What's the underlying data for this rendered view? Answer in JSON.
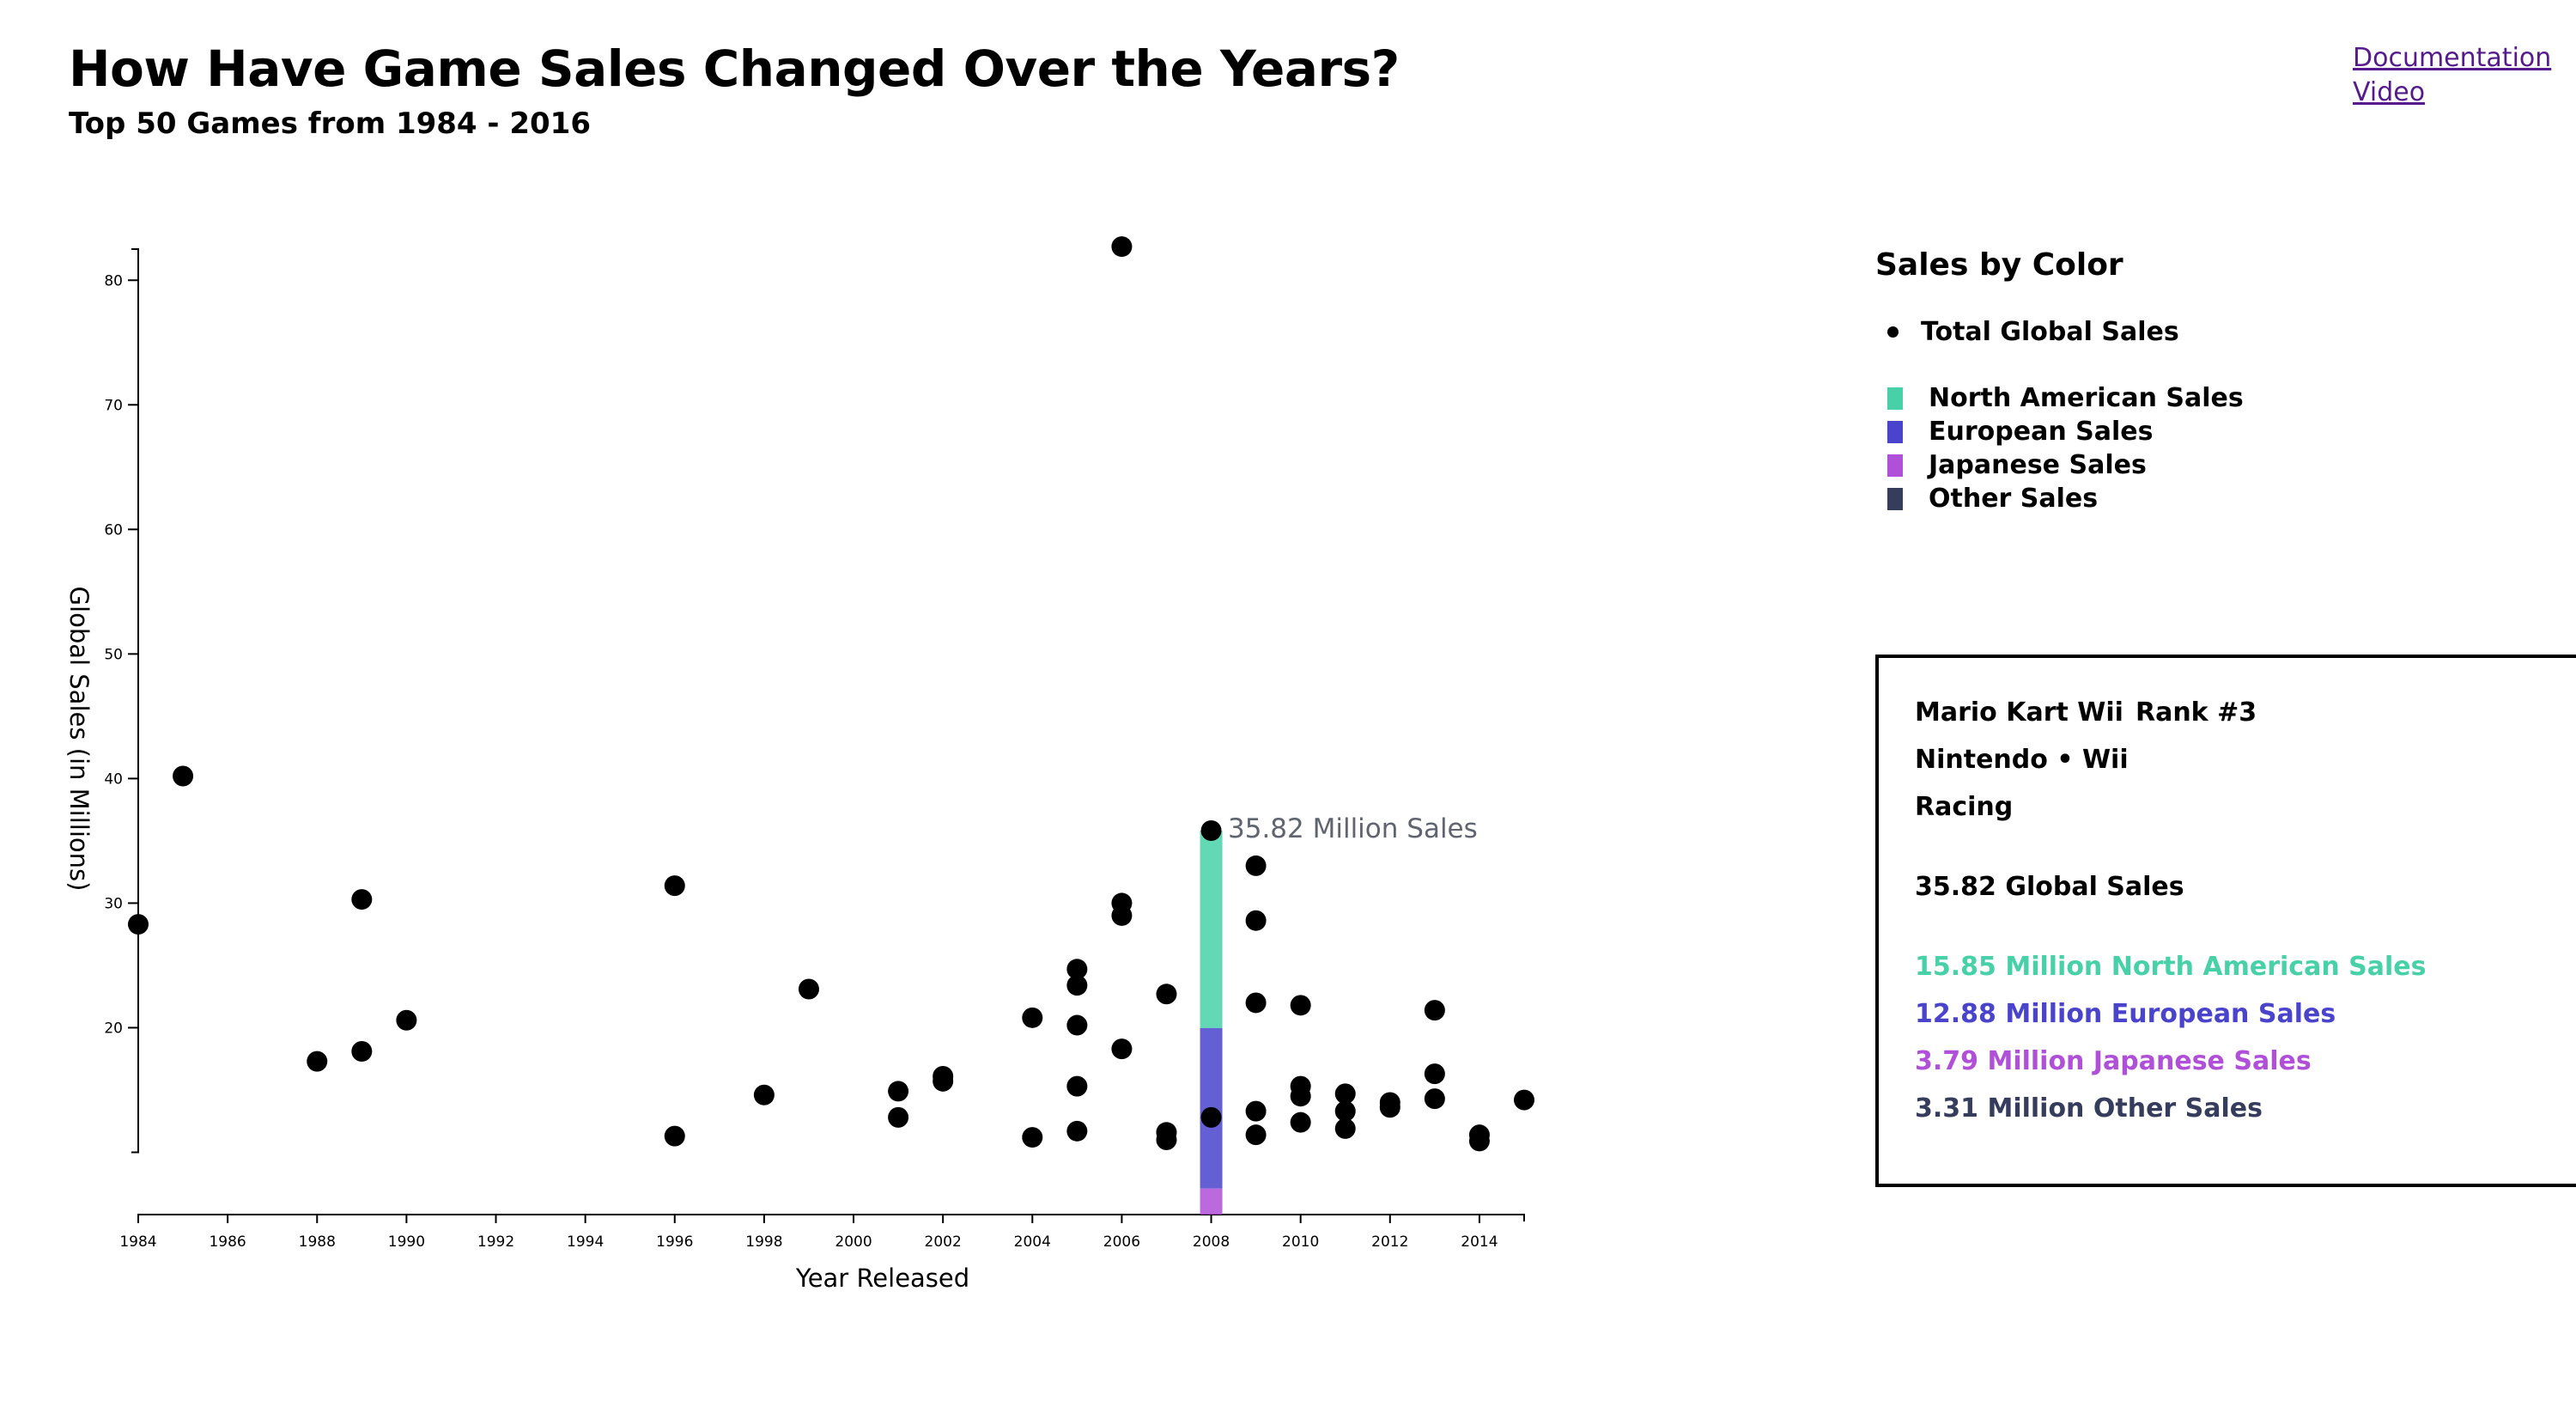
{
  "header": {
    "title": "How Have Game Sales Changed Over the Years?",
    "subtitle": "Top 50 Games from 1984 - 2016"
  },
  "links": {
    "documentation": "Documentation",
    "video": "Video"
  },
  "legend": {
    "title": "Sales by Color",
    "total_label": "Total Global Sales",
    "items": [
      {
        "label": "North American Sales",
        "color": "#48d1a8"
      },
      {
        "label": "European Sales",
        "color": "#4a43cc"
      },
      {
        "label": "Japanese Sales",
        "color": "#b04fd8"
      },
      {
        "label": "Other Sales",
        "color": "#363d5c"
      }
    ]
  },
  "tooltip": {
    "label": "35.82 Million Sales"
  },
  "info": {
    "name": "Mario Kart Wii",
    "rank": "Rank #3",
    "publisher_platform": "Nintendo • Wii",
    "genre": "Racing",
    "global": "35.82 Global Sales",
    "na": "15.85 Million North American Sales",
    "eu": "12.88 Million European Sales",
    "jp": "3.79 Million Japanese Sales",
    "other": "3.31 Million Other Sales"
  },
  "chart_data": {
    "type": "scatter",
    "xlabel": "Year Released",
    "ylabel": "Global Sales (in Millions)",
    "xlim": [
      1984,
      2015
    ],
    "ylim": [
      5,
      82.5
    ],
    "x_ticks": [
      1984,
      1986,
      1988,
      1990,
      1992,
      1994,
      1996,
      1998,
      2000,
      2002,
      2004,
      2006,
      2008,
      2010,
      2012,
      2014
    ],
    "y_ticks": [
      20,
      30,
      40,
      50,
      60,
      70,
      80
    ],
    "grid": false,
    "points": [
      {
        "x": 2006,
        "y": 82.7
      },
      {
        "x": 1985,
        "y": 40.2
      },
      {
        "x": 1984,
        "y": 28.3
      },
      {
        "x": 1989,
        "y": 30.3
      },
      {
        "x": 1996,
        "y": 31.4
      },
      {
        "x": 1990,
        "y": 20.6
      },
      {
        "x": 1989,
        "y": 18.1
      },
      {
        "x": 1988,
        "y": 17.3
      },
      {
        "x": 1996,
        "y": 11.3
      },
      {
        "x": 1998,
        "y": 14.6
      },
      {
        "x": 1999,
        "y": 23.1
      },
      {
        "x": 2001,
        "y": 14.9
      },
      {
        "x": 2001,
        "y": 12.8
      },
      {
        "x": 2002,
        "y": 16.1
      },
      {
        "x": 2002,
        "y": 15.7
      },
      {
        "x": 2004,
        "y": 20.8
      },
      {
        "x": 2004,
        "y": 11.2
      },
      {
        "x": 2005,
        "y": 24.7
      },
      {
        "x": 2005,
        "y": 23.4
      },
      {
        "x": 2005,
        "y": 20.2
      },
      {
        "x": 2005,
        "y": 15.3
      },
      {
        "x": 2005,
        "y": 11.7
      },
      {
        "x": 2006,
        "y": 30.0
      },
      {
        "x": 2006,
        "y": 29.0
      },
      {
        "x": 2006,
        "y": 18.3
      },
      {
        "x": 2007,
        "y": 22.7
      },
      {
        "x": 2007,
        "y": 11.6
      },
      {
        "x": 2007,
        "y": 11.0
      },
      {
        "x": 2008,
        "y": 35.82
      },
      {
        "x": 2008,
        "y": 12.8
      },
      {
        "x": 2009,
        "y": 33.0
      },
      {
        "x": 2009,
        "y": 28.6
      },
      {
        "x": 2009,
        "y": 22.0
      },
      {
        "x": 2009,
        "y": 13.3
      },
      {
        "x": 2009,
        "y": 11.4
      },
      {
        "x": 2010,
        "y": 21.8
      },
      {
        "x": 2010,
        "y": 15.3
      },
      {
        "x": 2010,
        "y": 14.5
      },
      {
        "x": 2010,
        "y": 12.4
      },
      {
        "x": 2011,
        "y": 14.7
      },
      {
        "x": 2011,
        "y": 13.3
      },
      {
        "x": 2011,
        "y": 11.9
      },
      {
        "x": 2012,
        "y": 14.0
      },
      {
        "x": 2012,
        "y": 13.6
      },
      {
        "x": 2013,
        "y": 21.4
      },
      {
        "x": 2013,
        "y": 16.3
      },
      {
        "x": 2013,
        "y": 14.3
      },
      {
        "x": 2014,
        "y": 11.4
      },
      {
        "x": 2014,
        "y": 10.9
      },
      {
        "x": 2015,
        "y": 14.2
      }
    ],
    "highlight": {
      "x": 2008,
      "total": 35.82,
      "segments": [
        {
          "name": "North American Sales",
          "value": 15.85,
          "color": "#48d1a8"
        },
        {
          "name": "European Sales",
          "value": 12.88,
          "color": "#4a43cc"
        },
        {
          "name": "Japanese Sales",
          "value": 3.79,
          "color": "#b04fd8"
        },
        {
          "name": "Other Sales",
          "value": 3.31,
          "color": "#363d5c"
        }
      ]
    }
  }
}
